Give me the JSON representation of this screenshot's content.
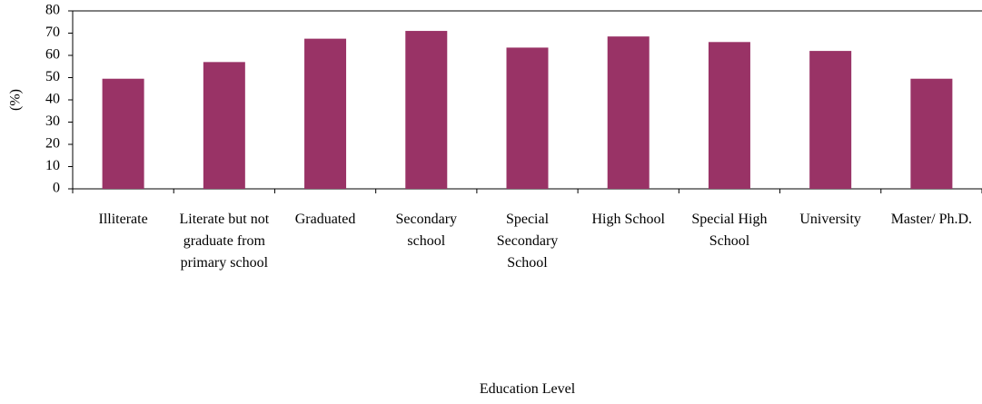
{
  "chart_data": {
    "type": "bar",
    "x_label": "Education Level",
    "y_label": "(%)",
    "categories": [
      "Illiterate",
      "Literate but not graduate from primary school",
      "Graduated",
      "Secondary school",
      "Special Secondary School",
      "High School",
      "Special High School",
      "University",
      "Master/ Ph.D."
    ],
    "values": [
      49.5,
      57,
      67.5,
      71,
      63.5,
      68.5,
      66,
      62,
      49.5
    ],
    "color": "#993366",
    "ylim": [
      0,
      80
    ],
    "yticks": [
      0,
      10,
      20,
      30,
      40,
      50,
      60,
      70,
      80
    ],
    "grid": false
  }
}
